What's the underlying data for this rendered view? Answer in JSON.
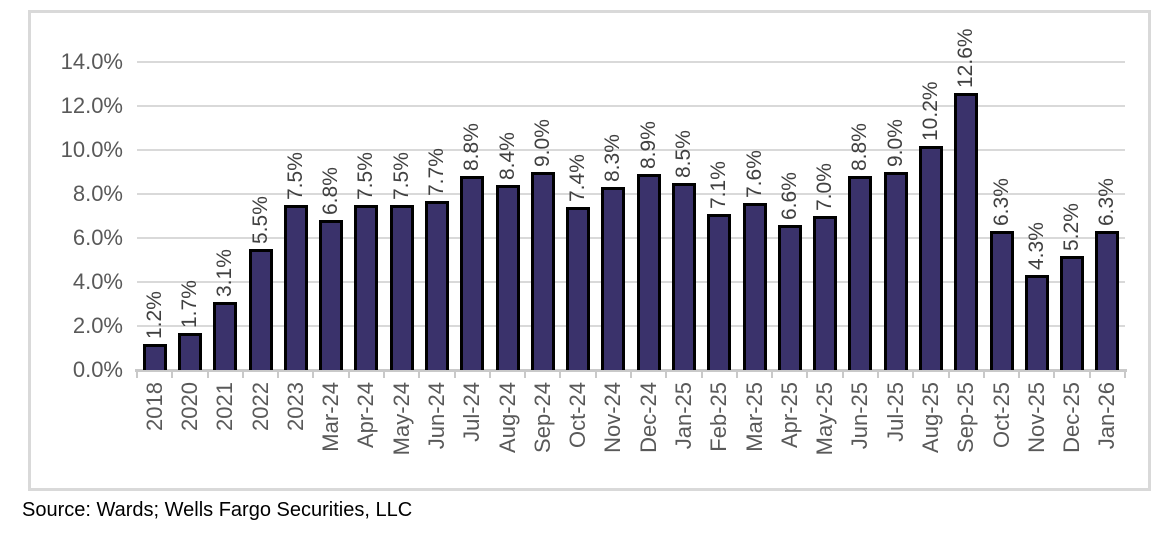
{
  "chart_data": {
    "type": "bar",
    "title": "",
    "xlabel": "",
    "ylabel": "",
    "categories": [
      "2018",
      "2020",
      "2021",
      "2022",
      "2023",
      "Mar-24",
      "Apr-24",
      "May-24",
      "Jun-24",
      "Jul-24",
      "Aug-24",
      "Sep-24",
      "Oct-24",
      "Nov-24",
      "Dec-24",
      "Jan-25",
      "Feb-25",
      "Mar-25",
      "Apr-25",
      "May-25",
      "Jun-25",
      "Jul-25",
      "Aug-25",
      "Sep-25",
      "Oct-25",
      "Nov-25",
      "Dec-25",
      "Jan-26"
    ],
    "values": [
      1.2,
      1.7,
      3.1,
      5.5,
      7.5,
      6.8,
      7.5,
      7.5,
      7.7,
      8.8,
      8.4,
      9.0,
      7.4,
      8.3,
      8.9,
      8.5,
      7.1,
      7.6,
      6.6,
      7.0,
      8.8,
      9.0,
      10.2,
      12.6,
      6.3,
      4.3,
      5.2,
      6.3
    ],
    "value_labels": [
      "1.2%",
      "1.7%",
      "3.1%",
      "5.5%",
      "7.5%",
      "6.8%",
      "7.5%",
      "7.5%",
      "7.7%",
      "8.8%",
      "8.4%",
      "9.0%",
      "7.4%",
      "8.3%",
      "8.9%",
      "8.5%",
      "7.1%",
      "7.6%",
      "6.6%",
      "7.0%",
      "8.8%",
      "9.0%",
      "10.2%",
      "12.6%",
      "6.3%",
      "4.3%",
      "5.2%",
      "6.3%"
    ],
    "ylim": [
      0,
      14
    ],
    "y_tick_values": [
      0,
      2,
      4,
      6,
      8,
      10,
      12,
      14
    ],
    "y_tick_labels": [
      "0.0%",
      "2.0%",
      "4.0%",
      "6.0%",
      "8.0%",
      "10.0%",
      "12.0%",
      "14.0%"
    ],
    "grid": true,
    "legend": "none",
    "label_rotation_degrees": -90,
    "theme": {
      "bar_fill": "#3A326B",
      "bar_border": "#000000",
      "gridline": "#D9D9D9",
      "axis_line": "#C9C9C9",
      "tick_label_color": "#595959",
      "value_label_color": "#404040",
      "frame_border": "#D9D9D9",
      "background": "#FFFFFF"
    }
  },
  "source": {
    "text": "Source: Wards; Wells Fargo Securities, LLC"
  }
}
